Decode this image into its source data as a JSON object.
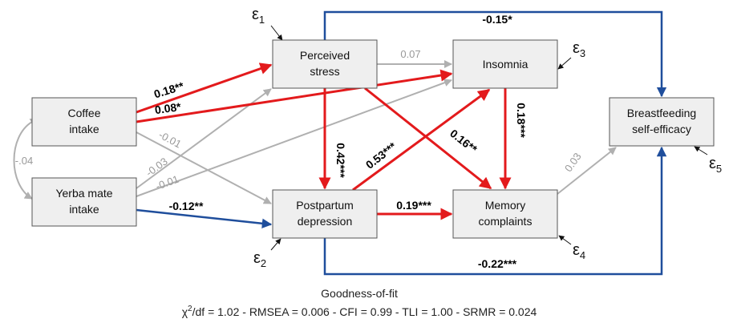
{
  "nodes": [
    {
      "label": [
        "Coffee",
        "intake"
      ]
    },
    {
      "label": [
        "Yerba mate",
        "intake"
      ]
    },
    {
      "label": [
        "Perceived",
        "stress"
      ]
    },
    {
      "label": [
        "Insomnia"
      ]
    },
    {
      "label": [
        "Postpartum",
        "depression"
      ]
    },
    {
      "label": [
        "Memory",
        "complaints"
      ]
    },
    {
      "label": [
        "Breastfeeding",
        "self-efficacy"
      ]
    }
  ],
  "edges": [
    {
      "label": "0.18**"
    },
    {
      "label": "0.08*"
    },
    {
      "label": "-0.01"
    },
    {
      "label": "-0.03"
    },
    {
      "label": "-0.01"
    },
    {
      "label": "-0.12**"
    },
    {
      "label": "-.04"
    },
    {
      "label": "0.07"
    },
    {
      "label": "0.42***"
    },
    {
      "label": "0.16**"
    },
    {
      "label": "0.53***"
    },
    {
      "label": "0.19***"
    },
    {
      "label": "0.18***"
    },
    {
      "label": "0.03"
    },
    {
      "label": "-0.15*"
    },
    {
      "label": "-0.22***"
    }
  ],
  "errors": [
    {
      "symbol": "ε",
      "index": "1"
    },
    {
      "symbol": "ε",
      "index": "2"
    },
    {
      "symbol": "ε",
      "index": "3"
    },
    {
      "symbol": "ε",
      "index": "4"
    },
    {
      "symbol": "ε",
      "index": "5"
    }
  ],
  "fit": {
    "title": "Goodness-of-fit",
    "chi": "χ",
    "sup": "2",
    "text": "/df = 1.02 - RMSEA = 0.006 - CFI = 0.99 - TLI = 1.00 - SRMR = 0.024"
  }
}
